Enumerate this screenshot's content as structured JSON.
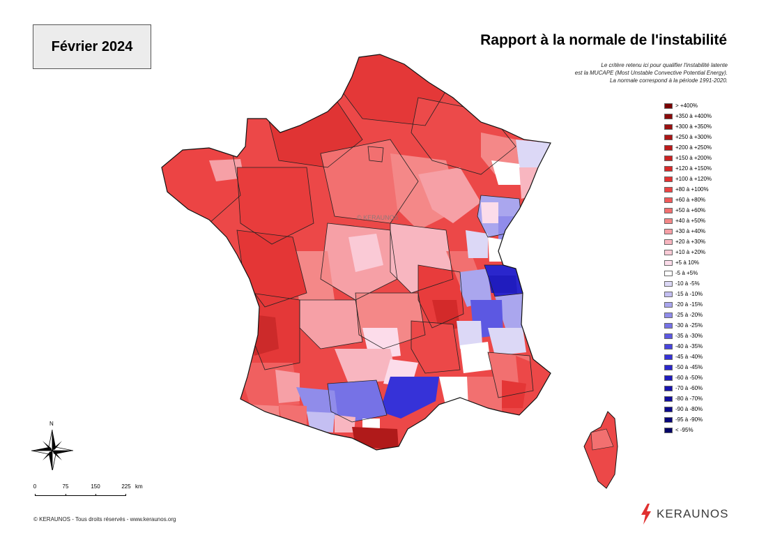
{
  "header": {
    "date_label": "Février 2024",
    "title": "Rapport à la normale de l'instabilité"
  },
  "note": {
    "lines": [
      "Le critère retenu ici pour qualifier l'instabilité latente",
      "est la MUCAPE (Most Unstable Convective Potential Energy).",
      "La normale correspond à la période 1991-2020."
    ]
  },
  "watermark": "© KERAUNOS",
  "legend": [
    {
      "label": "> +400%",
      "color": "#7a0000"
    },
    {
      "label": "+350 à +400%",
      "color": "#8b0a0a"
    },
    {
      "label": "+300 à +350%",
      "color": "#9c1010"
    },
    {
      "label": "+250 à +300%",
      "color": "#ad1515"
    },
    {
      "label": "+200 à +250%",
      "color": "#bd1a1a"
    },
    {
      "label": "+150 à +200%",
      "color": "#cc2222"
    },
    {
      "label": "+120 à +150%",
      "color": "#d92a2a"
    },
    {
      "label": "+100 à +120%",
      "color": "#e43232"
    },
    {
      "label": "+80 à +100%",
      "color": "#ec4444"
    },
    {
      "label": "+60 à +80%",
      "color": "#f05a5a"
    },
    {
      "label": "+50 à +60%",
      "color": "#f27070"
    },
    {
      "label": "+40 à +50%",
      "color": "#f48888"
    },
    {
      "label": "+30 à +40%",
      "color": "#f6a0a6"
    },
    {
      "label": "+20 à +30%",
      "color": "#f8b6c0"
    },
    {
      "label": "+10 à +20%",
      "color": "#facad6"
    },
    {
      "label": "+5 à 10%",
      "color": "#fcdcea"
    },
    {
      "label": "-5 à +5%",
      "color": "#ffffff"
    },
    {
      "label": "-10 à -5%",
      "color": "#dcd8f6"
    },
    {
      "label": "-15 à -10%",
      "color": "#c4bff2"
    },
    {
      "label": "-20 à -15%",
      "color": "#aaa6ee"
    },
    {
      "label": "-25 à -20%",
      "color": "#908cea"
    },
    {
      "label": "-30 à -25%",
      "color": "#7672e6"
    },
    {
      "label": "-35 à -30%",
      "color": "#5c58e2"
    },
    {
      "label": "-40 à -35%",
      "color": "#4844de"
    },
    {
      "label": "-45 à -40%",
      "color": "#3632d8"
    },
    {
      "label": "-50 à -45%",
      "color": "#2a26cc"
    },
    {
      "label": "-60 à -50%",
      "color": "#201cbe"
    },
    {
      "label": "-70 à -60%",
      "color": "#1814ae"
    },
    {
      "label": "-80 à -70%",
      "color": "#120e9e"
    },
    {
      "label": "-90 à -80%",
      "color": "#0c0a8c"
    },
    {
      "label": "-95 à -90%",
      "color": "#08067a"
    },
    {
      "label": "< -95%",
      "color": "#040466"
    }
  ],
  "compass": {
    "label": "N"
  },
  "scale_bar": {
    "ticks": [
      "0",
      "75",
      "150",
      "225"
    ],
    "unit": "km"
  },
  "footer": "© KERAUNOS - Tous droits réservés - www.keraunos.org",
  "brand": {
    "name": "KERAUNOS",
    "accent": "#e03030"
  }
}
